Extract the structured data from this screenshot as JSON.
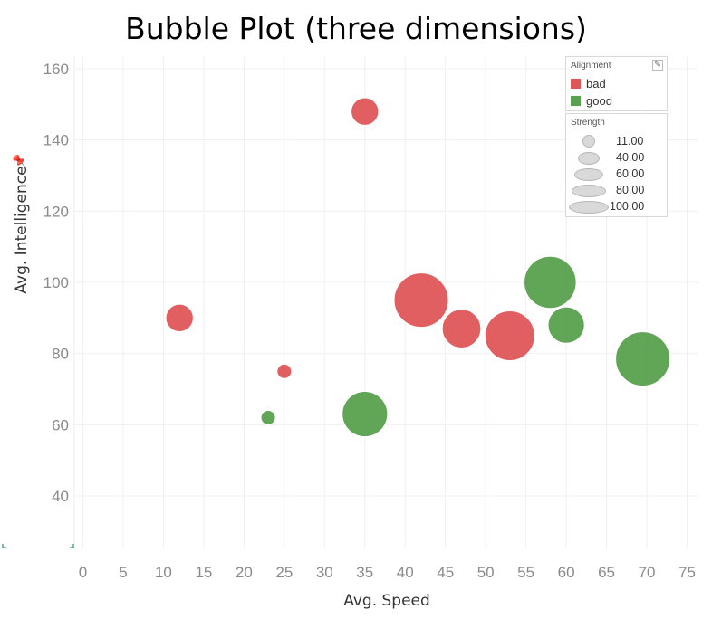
{
  "chart_data": {
    "type": "scatter",
    "title": "Bubble Plot (three dimensions)",
    "xlabel": "Avg. Speed",
    "ylabel": "Avg. Intelligence",
    "xlim": [
      -1,
      76
    ],
    "ylim": [
      25,
      162
    ],
    "xticks": [
      0,
      5,
      10,
      15,
      20,
      25,
      30,
      35,
      40,
      45,
      50,
      55,
      60,
      65,
      70,
      75
    ],
    "yticks": [
      40,
      60,
      80,
      100,
      120,
      140,
      160
    ],
    "grid": true,
    "colors": {
      "bad": "#e15759",
      "good": "#59a14f"
    },
    "series": [
      {
        "name": "bad",
        "points": [
          {
            "x": 35,
            "y": 148,
            "strength": 40
          },
          {
            "x": 12,
            "y": 90,
            "strength": 40
          },
          {
            "x": 25,
            "y": 75,
            "strength": 11
          },
          {
            "x": 42,
            "y": 95,
            "strength": 100
          },
          {
            "x": 47,
            "y": 87,
            "strength": 65
          },
          {
            "x": 53,
            "y": 85,
            "strength": 90
          }
        ]
      },
      {
        "name": "good",
        "points": [
          {
            "x": 23,
            "y": 62,
            "strength": 11
          },
          {
            "x": 35,
            "y": 63,
            "strength": 80
          },
          {
            "x": 58,
            "y": 100,
            "strength": 95
          },
          {
            "x": 60,
            "y": 88,
            "strength": 60
          },
          {
            "x": 69.5,
            "y": 78.5,
            "strength": 100
          }
        ]
      }
    ],
    "legend": {
      "placement": "top-right",
      "color_title": "Alignment",
      "size_title": "Strength",
      "size_values": [
        "11.00",
        "40.00",
        "60.00",
        "80.00",
        "100.00"
      ]
    }
  }
}
